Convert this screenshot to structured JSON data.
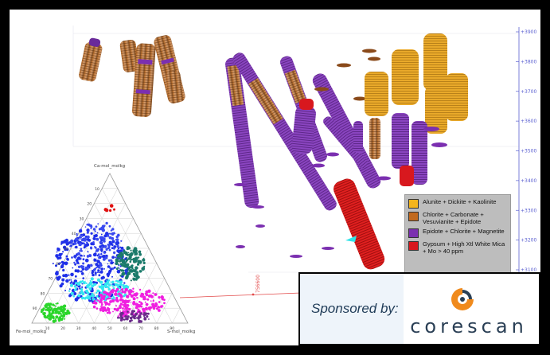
{
  "depth_axis": {
    "ticks": [
      "+3900",
      "+3800",
      "+3700",
      "+3600",
      "+3500",
      "+3400",
      "+3300",
      "+3200",
      "+3100"
    ]
  },
  "section_label": "756600",
  "ternary": {
    "apex_label": "Ca-mol_molkg",
    "left_label": "Fe-mol_molkg",
    "right_label": "S-mol_molkg",
    "bottom_ticks": [
      "10",
      "20",
      "30",
      "40",
      "50",
      "60",
      "70",
      "80",
      "90"
    ],
    "left_ticks": [
      "90",
      "80",
      "70",
      "60",
      "50",
      "40",
      "30",
      "20",
      "10"
    ]
  },
  "legend": {
    "items": [
      {
        "label": "Alunite + Dickite + Kaolinite",
        "color": "#f5b51c"
      },
      {
        "label": "Chlorite + Carbonate + Vesuvianite + Epidote",
        "color": "#c26a1e"
      },
      {
        "label": "Epidote + Chlorite + Magnetite",
        "color": "#7b2fb0"
      },
      {
        "label": "Gypsum + High Xtl White Mica + Mo > 40 ppm",
        "color": "#d8181e"
      }
    ]
  },
  "sponsor": {
    "label": "Sponsored by:",
    "brand": "corescan"
  },
  "colors": {
    "axis_blue": "#5a5fd0",
    "brand_orange": "#f08a1c",
    "brand_gray": "#2a3f55"
  }
}
